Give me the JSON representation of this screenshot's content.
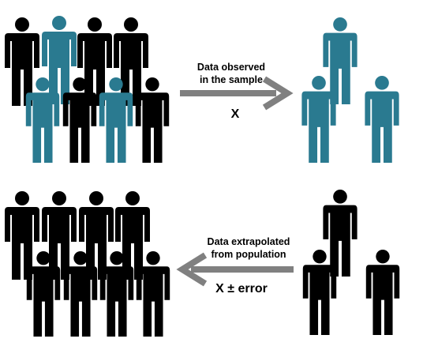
{
  "colors": {
    "teal": "#2a7a90",
    "black": "#000000",
    "arrow": "#808080"
  },
  "top": {
    "label_line1": "Data observed",
    "label_line2": "in the sample",
    "value": "X",
    "arrow_direction": "right"
  },
  "bottom": {
    "label_line1": "Data extrapolated",
    "label_line2": "from population",
    "value": "X ± error",
    "arrow_direction": "left"
  }
}
